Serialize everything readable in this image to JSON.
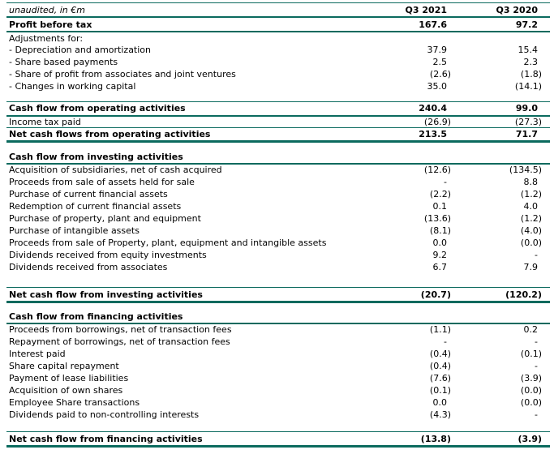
{
  "header": {
    "unit_note": "unaudited, in €m",
    "columns": [
      "Q3 2021",
      "Q3 2020"
    ]
  },
  "colors": {
    "rule": "#0B6A5E",
    "text": "#000000",
    "background": "#FFFFFF"
  },
  "rows": [
    {
      "label": "Profit before tax",
      "q3_2021": "167.6",
      "q3_2020": "97.2",
      "variant": "grand"
    },
    {
      "label": "Adjustments for:",
      "q3_2021": "",
      "q3_2020": "",
      "variant": "detail"
    },
    {
      "label": "- Depreciation and amortization",
      "q3_2021": "37.9",
      "q3_2020": "15.4",
      "variant": "detail"
    },
    {
      "label": "- Share based payments",
      "q3_2021": "2.5",
      "q3_2020": "2.3",
      "variant": "detail"
    },
    {
      "label": "- Share of profit from associates and joint ventures",
      "q3_2021": "(2.6)",
      "q3_2020": "(1.8)",
      "variant": "detail"
    },
    {
      "label": "- Changes in working capital",
      "q3_2021": "35.0",
      "q3_2020": "(14.1)",
      "variant": "detail"
    },
    {
      "variant": "spacer-11"
    },
    {
      "label": "Cash flow from operating activities",
      "q3_2021": "240.4",
      "q3_2020": "99.0",
      "variant": "subtotal"
    },
    {
      "label": "Income tax paid",
      "q3_2021": "(26.9)",
      "q3_2020": "(27.3)",
      "variant": "underline"
    },
    {
      "label": "Net cash flows from operating activities",
      "q3_2021": "213.5",
      "q3_2020": "71.7",
      "variant": "net"
    },
    {
      "variant": "spacer-12"
    },
    {
      "label": "Cash flow from investing activities",
      "q3_2021": "",
      "q3_2020": "",
      "variant": "section"
    },
    {
      "label": "Acquisition of subsidiaries, net of cash acquired",
      "q3_2021": "(12.6)",
      "q3_2020": "(134.5)",
      "variant": "detail"
    },
    {
      "label": "Proceeds from sale of assets held for sale",
      "q3_2021": "-",
      "q3_2020": "8.8",
      "variant": "detail"
    },
    {
      "label": "Purchase of current financial assets",
      "q3_2021": "(2.2)",
      "q3_2020": "(1.2)",
      "variant": "detail"
    },
    {
      "label": "Redemption of current financial assets",
      "q3_2021": "0.1",
      "q3_2020": "4.0",
      "variant": "detail"
    },
    {
      "label": "Purchase of property, plant and equipment",
      "q3_2021": "(13.6)",
      "q3_2020": "(1.2)",
      "variant": "detail"
    },
    {
      "label": "Purchase of intangible assets",
      "q3_2021": "(8.1)",
      "q3_2020": "(4.0)",
      "variant": "detail"
    },
    {
      "label": "Proceeds from sale of Property, plant, equipment and intangible assets",
      "q3_2021": "0.0",
      "q3_2020": "(0.0)",
      "variant": "detail"
    },
    {
      "label": "Dividends received from equity investments",
      "q3_2021": "9.2",
      "q3_2020": "-",
      "variant": "detail"
    },
    {
      "label": "Dividends received from associates",
      "q3_2021": "6.7",
      "q3_2020": "7.9",
      "variant": "detail"
    },
    {
      "variant": "spacer-18"
    },
    {
      "label": "Net cash flow from investing activities",
      "q3_2021": "(20.7)",
      "q3_2020": "(120.2)",
      "variant": "net-top"
    },
    {
      "variant": "spacer-11"
    },
    {
      "label": "Cash flow from financing activities",
      "q3_2021": "",
      "q3_2020": "",
      "variant": "section"
    },
    {
      "label": "Proceeds from borrowings, net of transaction fees",
      "q3_2021": "(1.1)",
      "q3_2020": "0.2",
      "variant": "detail"
    },
    {
      "label": "Repayment of borrowings, net of transaction fees",
      "q3_2021": "-",
      "q3_2020": "-",
      "variant": "detail"
    },
    {
      "label": "Interest paid",
      "q3_2021": "(0.4)",
      "q3_2020": "(0.1)",
      "variant": "detail"
    },
    {
      "label": "Share capital repayment",
      "q3_2021": "(0.4)",
      "q3_2020": "-",
      "variant": "detail"
    },
    {
      "label": "Payment of lease liabilities",
      "q3_2021": "(7.6)",
      "q3_2020": "(3.9)",
      "variant": "detail"
    },
    {
      "label": "Acquisition of own shares",
      "q3_2021": "(0.1)",
      "q3_2020": "(0.0)",
      "variant": "detail"
    },
    {
      "label": "Employee Share transactions",
      "q3_2021": "0.0",
      "q3_2020": "(0.0)",
      "variant": "detail"
    },
    {
      "label": "Dividends paid to non-controlling interests",
      "q3_2021": "(4.3)",
      "q3_2020": "-",
      "variant": "detail"
    },
    {
      "variant": "spacer-14"
    },
    {
      "label": "Net cash flow from financing activities",
      "q3_2021": "(13.8)",
      "q3_2020": "(3.9)",
      "variant": "net-top"
    }
  ]
}
